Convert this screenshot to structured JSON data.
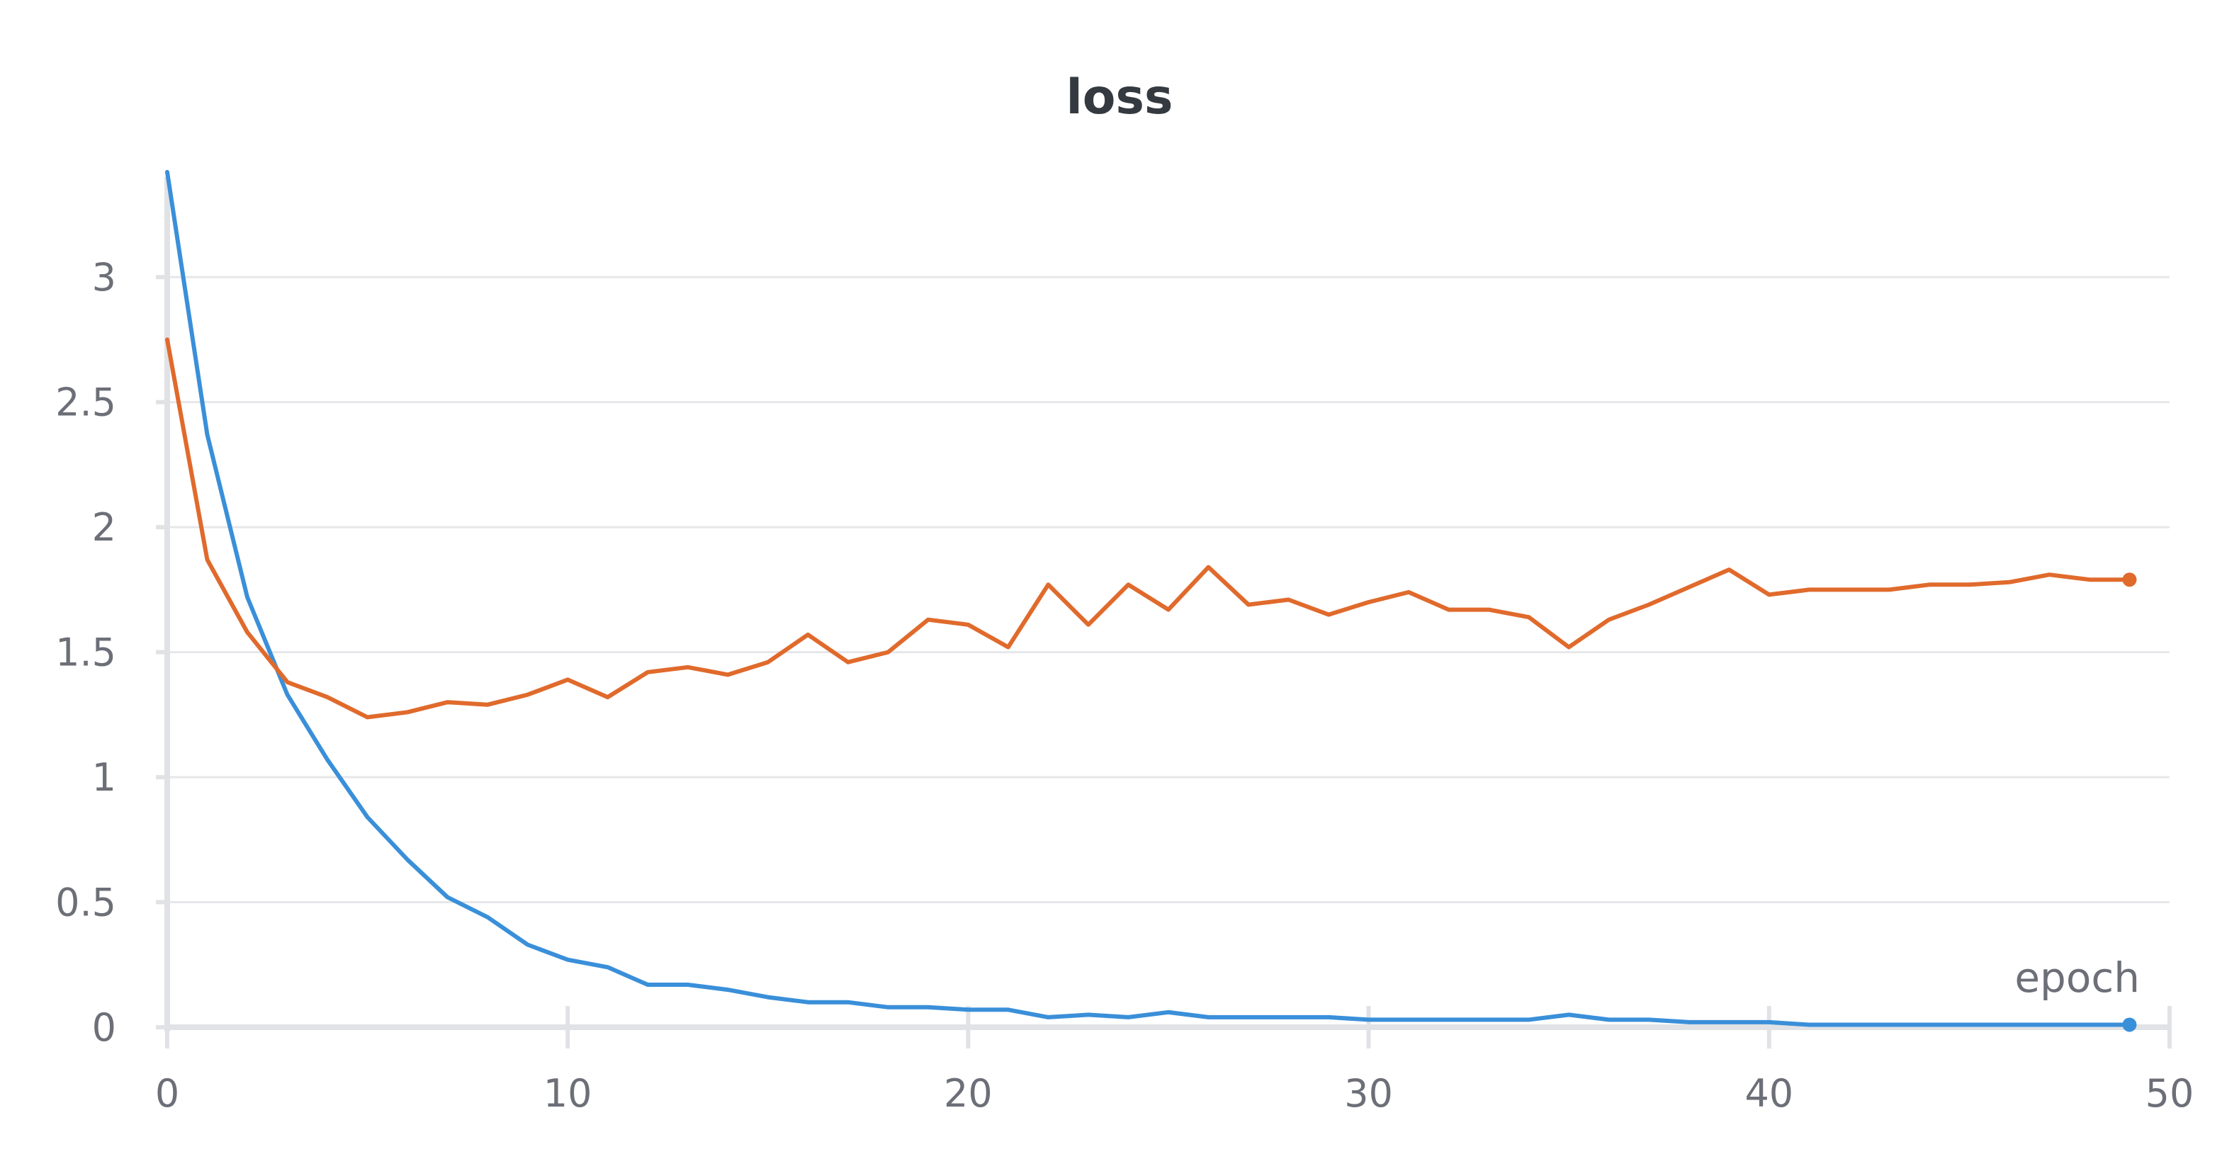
{
  "chart_data": {
    "type": "line",
    "title": "loss",
    "xlabel": "epoch",
    "ylabel": "",
    "xlim": [
      0,
      50
    ],
    "ylim": [
      0,
      3.4
    ],
    "xticks": [
      0,
      10,
      20,
      30,
      40,
      50
    ],
    "yticks": [
      0,
      0.5,
      1,
      1.5,
      2,
      2.5,
      3
    ],
    "ytick_labels": [
      "0",
      "0.5",
      "1",
      "1.5",
      "2",
      "2.5",
      "3"
    ],
    "grid": true,
    "legend": "none",
    "x": [
      0,
      1,
      2,
      3,
      4,
      5,
      6,
      7,
      8,
      9,
      10,
      11,
      12,
      13,
      14,
      15,
      16,
      17,
      18,
      19,
      20,
      21,
      22,
      23,
      24,
      25,
      26,
      27,
      28,
      29,
      30,
      31,
      32,
      33,
      34,
      35,
      36,
      37,
      38,
      39,
      40,
      41,
      42,
      43,
      44,
      45,
      46,
      47,
      48,
      49
    ],
    "series": [
      {
        "color": "#3a8fd9",
        "values": [
          3.42,
          2.37,
          1.72,
          1.33,
          1.07,
          0.84,
          0.67,
          0.52,
          0.44,
          0.33,
          0.27,
          0.24,
          0.17,
          0.17,
          0.15,
          0.12,
          0.1,
          0.1,
          0.08,
          0.08,
          0.07,
          0.07,
          0.04,
          0.05,
          0.04,
          0.06,
          0.04,
          0.04,
          0.04,
          0.04,
          0.03,
          0.03,
          0.03,
          0.03,
          0.03,
          0.05,
          0.03,
          0.03,
          0.02,
          0.02,
          0.02,
          0.01,
          0.01,
          0.01,
          0.01,
          0.01,
          0.01,
          0.01,
          0.01,
          0.01
        ]
      },
      {
        "color": "#e06a2c",
        "values": [
          2.75,
          1.87,
          1.58,
          1.38,
          1.32,
          1.24,
          1.26,
          1.3,
          1.29,
          1.33,
          1.39,
          1.32,
          1.42,
          1.44,
          1.41,
          1.46,
          1.57,
          1.46,
          1.5,
          1.63,
          1.61,
          1.52,
          1.77,
          1.61,
          1.77,
          1.67,
          1.84,
          1.69,
          1.71,
          1.65,
          1.7,
          1.74,
          1.67,
          1.67,
          1.64,
          1.52,
          1.63,
          1.69,
          1.76,
          1.83,
          1.73,
          1.75,
          1.75,
          1.75,
          1.77,
          1.77,
          1.78,
          1.81,
          1.79,
          1.79
        ]
      }
    ]
  }
}
